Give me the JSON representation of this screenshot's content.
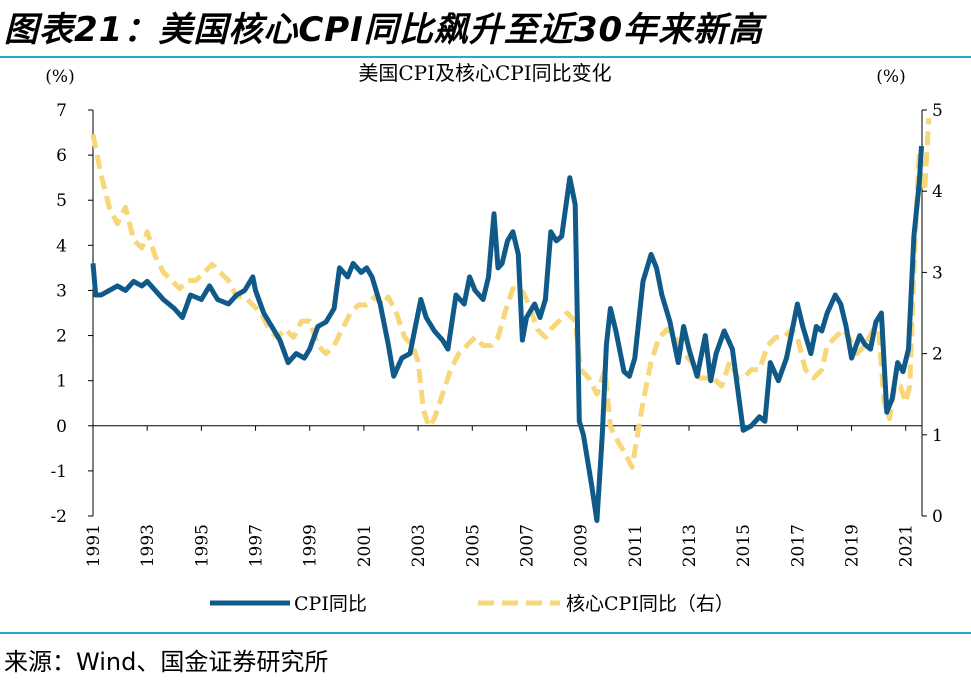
{
  "figure_title": "图表21：美国核心CPI同比飙升至近30年来新高",
  "source": "来源：Wind、国金证券研究所",
  "colors": {
    "cpi": "#0f5a88",
    "core": "#f8d77a",
    "rule": "#2aa7c9"
  },
  "chart_data": {
    "type": "line",
    "title": "美国CPI及核心CPI同比变化",
    "left_unit": "(%)",
    "right_unit": "(%)",
    "ylim_left": [
      -2,
      7
    ],
    "ylim_right": [
      0,
      5
    ],
    "yticks_left": [
      "7",
      "6",
      "5",
      "4",
      "3",
      "2",
      "1",
      "0",
      "-1",
      "-2"
    ],
    "yticks_right": [
      "5",
      "4",
      "3",
      "2",
      "1",
      "0"
    ],
    "xlim": [
      1991,
      2021.6
    ],
    "xticks": [
      "1991",
      "1993",
      "1995",
      "1997",
      "1999",
      "2001",
      "2003",
      "2005",
      "2007",
      "2009",
      "2011",
      "2013",
      "2015",
      "2017",
      "2019",
      "2021"
    ],
    "series": [
      {
        "name": "CPI同比",
        "axis": "left",
        "style": "solid",
        "points": [
          [
            1991.0,
            3.6
          ],
          [
            1991.1,
            2.9
          ],
          [
            1991.3,
            2.9
          ],
          [
            1991.6,
            3.0
          ],
          [
            1991.9,
            3.1
          ],
          [
            1992.2,
            3.0
          ],
          [
            1992.5,
            3.2
          ],
          [
            1992.8,
            3.1
          ],
          [
            1993.0,
            3.2
          ],
          [
            1993.3,
            3.0
          ],
          [
            1993.6,
            2.8
          ],
          [
            1994.0,
            2.6
          ],
          [
            1994.3,
            2.4
          ],
          [
            1994.6,
            2.9
          ],
          [
            1995.0,
            2.8
          ],
          [
            1995.3,
            3.1
          ],
          [
            1995.6,
            2.8
          ],
          [
            1996.0,
            2.7
          ],
          [
            1996.3,
            2.9
          ],
          [
            1996.6,
            3.0
          ],
          [
            1996.9,
            3.3
          ],
          [
            1997.0,
            3.0
          ],
          [
            1997.3,
            2.5
          ],
          [
            1997.6,
            2.2
          ],
          [
            1997.9,
            1.9
          ],
          [
            1998.2,
            1.4
          ],
          [
            1998.5,
            1.6
          ],
          [
            1998.8,
            1.5
          ],
          [
            1999.0,
            1.7
          ],
          [
            1999.3,
            2.2
          ],
          [
            1999.6,
            2.3
          ],
          [
            1999.9,
            2.6
          ],
          [
            2000.1,
            3.5
          ],
          [
            2000.4,
            3.3
          ],
          [
            2000.6,
            3.6
          ],
          [
            2000.9,
            3.4
          ],
          [
            2001.1,
            3.5
          ],
          [
            2001.3,
            3.3
          ],
          [
            2001.6,
            2.7
          ],
          [
            2001.9,
            1.8
          ],
          [
            2002.1,
            1.1
          ],
          [
            2002.4,
            1.5
          ],
          [
            2002.7,
            1.6
          ],
          [
            2002.9,
            2.2
          ],
          [
            2003.1,
            2.8
          ],
          [
            2003.3,
            2.4
          ],
          [
            2003.6,
            2.1
          ],
          [
            2003.9,
            1.9
          ],
          [
            2004.1,
            1.7
          ],
          [
            2004.4,
            2.9
          ],
          [
            2004.7,
            2.7
          ],
          [
            2004.9,
            3.3
          ],
          [
            2005.1,
            3.0
          ],
          [
            2005.4,
            2.8
          ],
          [
            2005.6,
            3.3
          ],
          [
            2005.8,
            4.7
          ],
          [
            2005.95,
            3.5
          ],
          [
            2006.1,
            3.6
          ],
          [
            2006.3,
            4.1
          ],
          [
            2006.5,
            4.3
          ],
          [
            2006.7,
            3.8
          ],
          [
            2006.85,
            1.9
          ],
          [
            2007.0,
            2.4
          ],
          [
            2007.3,
            2.7
          ],
          [
            2007.5,
            2.4
          ],
          [
            2007.7,
            2.8
          ],
          [
            2007.9,
            4.3
          ],
          [
            2008.1,
            4.1
          ],
          [
            2008.3,
            4.2
          ],
          [
            2008.6,
            5.5
          ],
          [
            2008.8,
            4.9
          ],
          [
            2008.95,
            0.1
          ],
          [
            2009.1,
            -0.2
          ],
          [
            2009.4,
            -1.3
          ],
          [
            2009.6,
            -2.1
          ],
          [
            2009.8,
            -0.2
          ],
          [
            2009.95,
            1.8
          ],
          [
            2010.1,
            2.6
          ],
          [
            2010.3,
            2.1
          ],
          [
            2010.6,
            1.2
          ],
          [
            2010.8,
            1.1
          ],
          [
            2011.0,
            1.5
          ],
          [
            2011.3,
            3.2
          ],
          [
            2011.6,
            3.8
          ],
          [
            2011.8,
            3.5
          ],
          [
            2012.0,
            2.9
          ],
          [
            2012.3,
            2.3
          ],
          [
            2012.6,
            1.4
          ],
          [
            2012.8,
            2.2
          ],
          [
            2013.0,
            1.7
          ],
          [
            2013.3,
            1.1
          ],
          [
            2013.6,
            2.0
          ],
          [
            2013.8,
            1.0
          ],
          [
            2014.0,
            1.6
          ],
          [
            2014.3,
            2.1
          ],
          [
            2014.6,
            1.7
          ],
          [
            2014.8,
            0.8
          ],
          [
            2015.0,
            -0.1
          ],
          [
            2015.3,
            0.0
          ],
          [
            2015.6,
            0.2
          ],
          [
            2015.8,
            0.1
          ],
          [
            2016.0,
            1.4
          ],
          [
            2016.3,
            1.0
          ],
          [
            2016.6,
            1.5
          ],
          [
            2016.8,
            2.1
          ],
          [
            2017.0,
            2.7
          ],
          [
            2017.2,
            2.2
          ],
          [
            2017.5,
            1.6
          ],
          [
            2017.7,
            2.2
          ],
          [
            2017.9,
            2.1
          ],
          [
            2018.1,
            2.5
          ],
          [
            2018.4,
            2.9
          ],
          [
            2018.6,
            2.7
          ],
          [
            2018.8,
            2.2
          ],
          [
            2019.0,
            1.5
          ],
          [
            2019.3,
            2.0
          ],
          [
            2019.5,
            1.8
          ],
          [
            2019.7,
            1.7
          ],
          [
            2019.9,
            2.3
          ],
          [
            2020.1,
            2.5
          ],
          [
            2020.3,
            0.3
          ],
          [
            2020.5,
            0.6
          ],
          [
            2020.7,
            1.4
          ],
          [
            2020.9,
            1.2
          ],
          [
            2021.1,
            1.7
          ],
          [
            2021.3,
            4.2
          ],
          [
            2021.5,
            5.4
          ],
          [
            2021.58,
            6.2
          ]
        ]
      },
      {
        "name": "核心CPI同比（右）",
        "axis": "right",
        "style": "dashed",
        "points": [
          [
            1991.0,
            4.7
          ],
          [
            1991.3,
            4.2
          ],
          [
            1991.6,
            3.8
          ],
          [
            1991.9,
            3.6
          ],
          [
            1992.2,
            3.8
          ],
          [
            1992.5,
            3.4
          ],
          [
            1992.8,
            3.3
          ],
          [
            1993.0,
            3.5
          ],
          [
            1993.3,
            3.2
          ],
          [
            1993.6,
            3.0
          ],
          [
            1993.9,
            2.9
          ],
          [
            1994.2,
            2.8
          ],
          [
            1994.5,
            2.9
          ],
          [
            1994.8,
            2.9
          ],
          [
            1995.1,
            3.0
          ],
          [
            1995.4,
            3.1
          ],
          [
            1995.7,
            3.0
          ],
          [
            1996.0,
            2.9
          ],
          [
            1996.3,
            2.7
          ],
          [
            1996.6,
            2.7
          ],
          [
            1996.9,
            2.6
          ],
          [
            1997.2,
            2.5
          ],
          [
            1997.5,
            2.3
          ],
          [
            1997.8,
            2.2
          ],
          [
            1998.1,
            2.3
          ],
          [
            1998.4,
            2.2
          ],
          [
            1998.7,
            2.4
          ],
          [
            1999.0,
            2.4
          ],
          [
            1999.3,
            2.1
          ],
          [
            1999.6,
            2.0
          ],
          [
            1999.9,
            2.1
          ],
          [
            2000.2,
            2.3
          ],
          [
            2000.5,
            2.5
          ],
          [
            2000.8,
            2.6
          ],
          [
            2001.1,
            2.6
          ],
          [
            2001.4,
            2.7
          ],
          [
            2001.7,
            2.6
          ],
          [
            2001.9,
            2.7
          ],
          [
            2002.2,
            2.5
          ],
          [
            2002.5,
            2.2
          ],
          [
            2002.8,
            2.1
          ],
          [
            2003.0,
            1.9
          ],
          [
            2003.2,
            1.3
          ],
          [
            2003.4,
            1.1
          ],
          [
            2003.6,
            1.2
          ],
          [
            2003.9,
            1.5
          ],
          [
            2004.2,
            1.8
          ],
          [
            2004.5,
            2.0
          ],
          [
            2004.8,
            2.1
          ],
          [
            2005.1,
            2.2
          ],
          [
            2005.4,
            2.1
          ],
          [
            2005.7,
            2.1
          ],
          [
            2005.95,
            2.2
          ],
          [
            2006.2,
            2.5
          ],
          [
            2006.5,
            2.8
          ],
          [
            2006.8,
            2.8
          ],
          [
            2007.1,
            2.6
          ],
          [
            2007.4,
            2.3
          ],
          [
            2007.7,
            2.2
          ],
          [
            2007.9,
            2.3
          ],
          [
            2008.2,
            2.4
          ],
          [
            2008.5,
            2.5
          ],
          [
            2008.8,
            2.4
          ],
          [
            2009.0,
            1.8
          ],
          [
            2009.3,
            1.7
          ],
          [
            2009.6,
            1.5
          ],
          [
            2009.9,
            1.8
          ],
          [
            2010.1,
            1.1
          ],
          [
            2010.4,
            0.9
          ],
          [
            2010.6,
            0.8
          ],
          [
            2010.9,
            0.6
          ],
          [
            2011.1,
            1.0
          ],
          [
            2011.3,
            1.4
          ],
          [
            2011.6,
            1.9
          ],
          [
            2011.9,
            2.2
          ],
          [
            2012.2,
            2.3
          ],
          [
            2012.5,
            2.2
          ],
          [
            2012.8,
            2.0
          ],
          [
            2013.1,
            1.9
          ],
          [
            2013.4,
            1.7
          ],
          [
            2013.7,
            1.7
          ],
          [
            2013.9,
            1.7
          ],
          [
            2014.2,
            1.6
          ],
          [
            2014.5,
            1.9
          ],
          [
            2014.8,
            1.7
          ],
          [
            2015.0,
            1.7
          ],
          [
            2015.3,
            1.8
          ],
          [
            2015.6,
            1.8
          ],
          [
            2015.9,
            2.1
          ],
          [
            2016.2,
            2.2
          ],
          [
            2016.5,
            2.2
          ],
          [
            2016.8,
            2.3
          ],
          [
            2017.0,
            2.2
          ],
          [
            2017.3,
            1.8
          ],
          [
            2017.6,
            1.7
          ],
          [
            2017.9,
            1.8
          ],
          [
            2018.1,
            2.1
          ],
          [
            2018.4,
            2.2
          ],
          [
            2018.7,
            2.3
          ],
          [
            2018.9,
            2.2
          ],
          [
            2019.2,
            2.0
          ],
          [
            2019.5,
            2.1
          ],
          [
            2019.8,
            2.3
          ],
          [
            2020.0,
            2.3
          ],
          [
            2020.2,
            1.4
          ],
          [
            2020.4,
            1.2
          ],
          [
            2020.6,
            1.6
          ],
          [
            2020.8,
            1.6
          ],
          [
            2021.0,
            1.4
          ],
          [
            2021.15,
            1.6
          ],
          [
            2021.3,
            3.0
          ],
          [
            2021.4,
            3.8
          ],
          [
            2021.5,
            4.5
          ],
          [
            2021.6,
            4.3
          ],
          [
            2021.7,
            4.0
          ],
          [
            2021.85,
            4.9
          ]
        ]
      }
    ],
    "legend": {
      "position": "bottom"
    }
  }
}
